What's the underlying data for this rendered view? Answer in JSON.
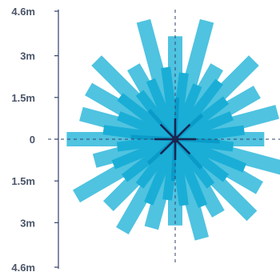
{
  "chart_data": {
    "type": "radial-bar",
    "title": "",
    "xlabel": "",
    "ylabel": "",
    "y_range": [
      -4.6,
      4.6
    ],
    "y_ticks": [
      {
        "value": 4.6,
        "label": "4.6m"
      },
      {
        "value": 3,
        "label": "3m"
      },
      {
        "value": 1.5,
        "label": "1.5m"
      },
      {
        "value": 0,
        "label": "0"
      },
      {
        "value": -1.5,
        "label": "1.5m"
      },
      {
        "value": -3,
        "label": "3m"
      },
      {
        "value": -4.6,
        "label": "4.6m"
      }
    ],
    "grid": false,
    "crosshair": true,
    "colors": {
      "axis": "#33406a",
      "light_bar": "#4fc3e0",
      "mid_bar": "#1aaed6",
      "dark_bar": "#0a9bc8",
      "center": "#1a2550",
      "text": "#4a5568"
    },
    "series": [
      {
        "color_key": "light_bar",
        "angles_deg": [
          0,
          15,
          30,
          45,
          60,
          75,
          90,
          105,
          120,
          135,
          150,
          165,
          180,
          195,
          210,
          225,
          240,
          255,
          270,
          285,
          300,
          315,
          330,
          345
        ],
        "values": [
          3.7,
          4.4,
          3.0,
          4.0,
          3.4,
          3.8,
          3.2,
          4.6,
          3.5,
          3.9,
          3.1,
          3.7,
          3.1,
          3.3,
          3.8,
          3.4,
          4.1,
          3.0,
          3.9,
          3.5,
          3.6,
          4.0,
          3.0,
          4.4
        ]
      },
      {
        "color_key": "mid_bar",
        "angles_deg": [
          7.5,
          22.5,
          37.5,
          52.5,
          67.5,
          82.5,
          97.5,
          112.5,
          127.5,
          142.5,
          157.5,
          172.5,
          187.5,
          202.5,
          217.5,
          232.5,
          247.5,
          262.5,
          277.5,
          292.5,
          307.5,
          322.5,
          337.5,
          352.5
        ],
        "values": [
          2.4,
          2.1,
          2.6,
          2.3,
          2.2,
          2.5,
          2.1,
          2.7,
          2.3,
          2.1,
          2.6,
          2.4,
          2.2,
          2.5,
          2.1,
          2.3,
          2.4,
          2.1,
          2.6,
          2.2,
          2.5,
          2.1,
          2.3,
          2.6
        ]
      },
      {
        "color_key": "dark_bar",
        "angles_deg": [
          3,
          48,
          93,
          138,
          183,
          228,
          273,
          318
        ],
        "values": [
          1.5,
          1.3,
          1.6,
          1.4,
          1.5,
          1.3,
          1.6,
          1.4
        ]
      }
    ]
  }
}
